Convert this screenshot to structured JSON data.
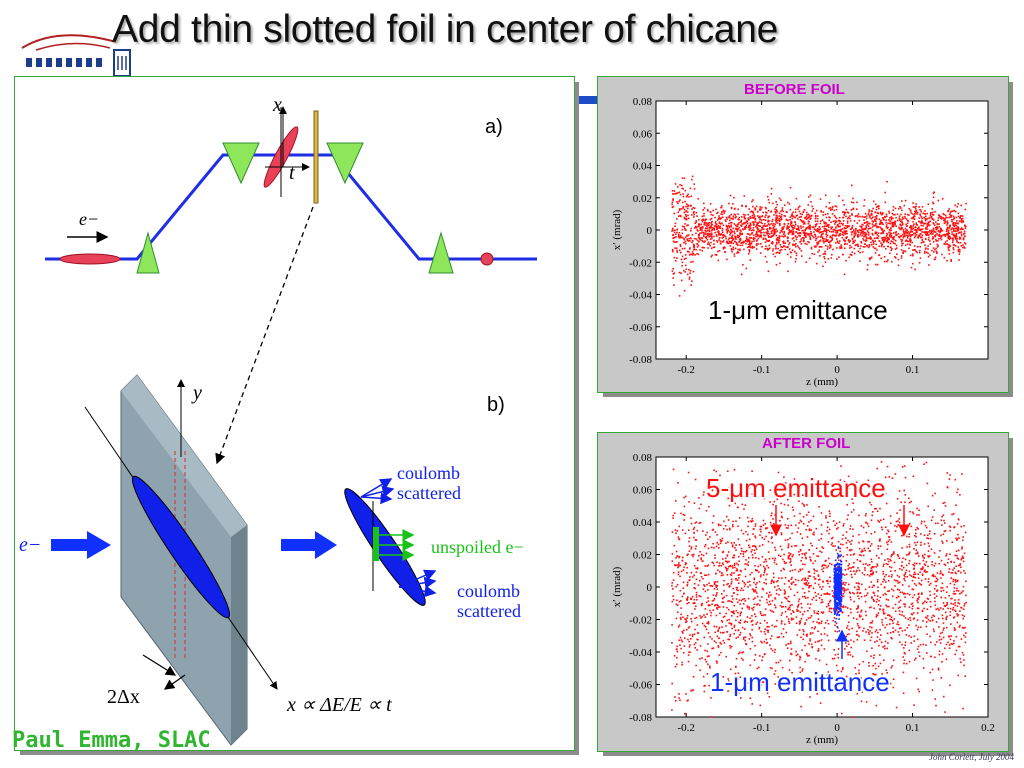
{
  "slide": {
    "title": "Add thin slotted foil in center of chicane",
    "author": "Paul Emma, SLAC",
    "credit": "John Corlett, July 2004"
  },
  "diagram": {
    "panel_a_label": "a)",
    "panel_b_label": "b)",
    "axis_x": "x",
    "axis_t": "t",
    "axis_y": "y",
    "electron": "e−",
    "coulomb_scattered": [
      "coulomb",
      "scattered"
    ],
    "unspoiled": "unspoiled e−",
    "slot_width": "2Δx",
    "relation": "x ∝ ΔE/E ∝ t"
  },
  "colors": {
    "beamline": "#1e2ee6",
    "magnet": "#8ee65a",
    "foil": "#7f949e",
    "bunch": "#1020e8",
    "scatter_red": "#ff1010",
    "unspoiled_green": "#19c219",
    "label_magenta": "#cc00cc"
  },
  "chart_data": [
    {
      "type": "scatter",
      "title": "BEFORE FOIL",
      "xlabel": "z (mm)",
      "ylabel": "x′ (mrad)",
      "xlim": [
        -0.24,
        0.2
      ],
      "ylim": [
        -0.08,
        0.08
      ],
      "xticks": [
        "-0.2",
        "-0.1",
        "0",
        "0.1"
      ],
      "yticks": [
        "0.08",
        "0.06",
        "0.04",
        "0.02",
        "0",
        "-0.02",
        "-0.04",
        "-0.06",
        "-0.08"
      ],
      "annotation": "1-μm emittance",
      "series": [
        {
          "color": "#ff1010",
          "z_range": [
            -0.22,
            0.17
          ],
          "x_center": 0,
          "x_spread": 0.008
        }
      ]
    },
    {
      "type": "scatter",
      "title": "AFTER FOIL",
      "xlabel": "z (mm)",
      "ylabel": "x′ (mrad)",
      "xlim": [
        -0.24,
        0.2
      ],
      "ylim": [
        -0.08,
        0.08
      ],
      "xticks": [
        "-0.2",
        "-0.1",
        "0",
        "0.1",
        "0.2"
      ],
      "yticks": [
        "0.08",
        "0.06",
        "0.04",
        "0.02",
        "0",
        "-0.02",
        "-0.04",
        "-0.06",
        "-0.08"
      ],
      "annotations": [
        "5-μm emittance",
        "1-μm emittance"
      ],
      "series": [
        {
          "color": "#ff1010",
          "z_range": [
            -0.22,
            0.17
          ],
          "x_center": 0,
          "x_spread": 0.03
        },
        {
          "color": "#1030ff",
          "z_range": [
            -0.005,
            0.005
          ],
          "x_center": 0,
          "x_spread": 0.008
        }
      ]
    }
  ]
}
